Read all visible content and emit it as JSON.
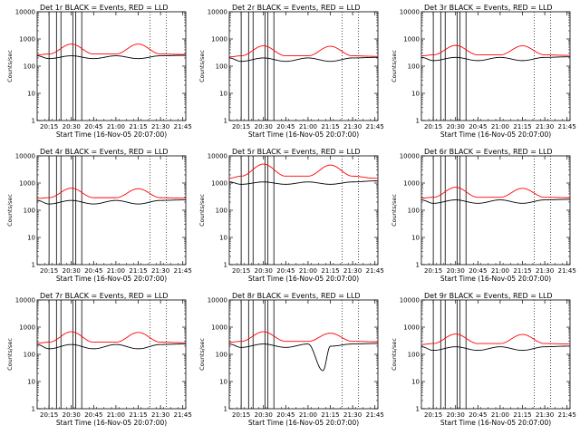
{
  "chart_data": [
    {
      "type": "line",
      "title": "Det 1r BLACK = Events, RED = LLD",
      "xlabel": "Start Time (16-Nov-05 20:07:00)",
      "ylabel": "Counts/sec",
      "yscale": "log",
      "ylim": [
        1,
        10000
      ],
      "xlim": [
        "20:07",
        "21:47"
      ],
      "yticks": [
        "1",
        "10",
        "100",
        "1000",
        "10000"
      ],
      "xticks": [
        "20:15",
        "20:30",
        "20:45",
        "21:00",
        "21:15",
        "21:30",
        "21:45"
      ],
      "vlines": [
        "20:15",
        "20:20",
        "20:23",
        "20:31",
        "20:33",
        "20:37"
      ],
      "dotted_vlines": [
        "21:23",
        "21:34"
      ],
      "series": [
        {
          "name": "RED",
          "color": "#ff0000",
          "x": [
            "20:07",
            "20:15",
            "20:30",
            "20:45",
            "21:00",
            "21:15",
            "21:30",
            "21:45"
          ],
          "y": [
            260,
            280,
            650,
            280,
            280,
            650,
            280,
            270
          ]
        },
        {
          "name": "BLACK",
          "color": "#000000",
          "x": [
            "20:07",
            "20:15",
            "20:30",
            "20:45",
            "21:00",
            "21:15",
            "21:30",
            "21:45"
          ],
          "y": [
            240,
            190,
            240,
            190,
            240,
            190,
            240,
            250
          ]
        }
      ]
    },
    {
      "type": "line",
      "title": "Det 2r BLACK = Events, RED = LLD",
      "xlabel": "Start Time (16-Nov-05 20:07:00)",
      "ylabel": "Counts/sec",
      "yscale": "log",
      "ylim": [
        1,
        10000
      ],
      "xlim": [
        "20:07",
        "21:47"
      ],
      "yticks": [
        "1",
        "10",
        "100",
        "1000",
        "10000"
      ],
      "xticks": [
        "20:15",
        "20:30",
        "20:45",
        "21:00",
        "21:15",
        "21:30",
        "21:45"
      ],
      "vlines": [
        "20:15",
        "20:20",
        "20:23",
        "20:31",
        "20:33",
        "20:37"
      ],
      "dotted_vlines": [
        "21:23",
        "21:34"
      ],
      "series": [
        {
          "name": "RED",
          "color": "#ff0000",
          "x": [
            "20:07",
            "20:15",
            "20:30",
            "20:45",
            "21:00",
            "21:15",
            "21:30",
            "21:45"
          ],
          "y": [
            220,
            240,
            560,
            240,
            240,
            540,
            240,
            230
          ]
        },
        {
          "name": "BLACK",
          "color": "#000000",
          "x": [
            "20:07",
            "20:15",
            "20:30",
            "20:45",
            "21:00",
            "21:15",
            "21:30",
            "21:45"
          ],
          "y": [
            200,
            150,
            200,
            150,
            200,
            150,
            200,
            210
          ]
        }
      ]
    },
    {
      "type": "line",
      "title": "Det 3r BLACK = Events, RED = LLD",
      "xlabel": "Start Time (16-Nov-05 20:07:00)",
      "ylabel": "Counts/sec",
      "yscale": "log",
      "ylim": [
        1,
        10000
      ],
      "xlim": [
        "20:07",
        "21:47"
      ],
      "yticks": [
        "1",
        "10",
        "100",
        "1000",
        "10000"
      ],
      "xticks": [
        "20:15",
        "20:30",
        "20:45",
        "21:00",
        "21:15",
        "21:30",
        "21:45"
      ],
      "vlines": [
        "20:15",
        "20:20",
        "20:23",
        "20:31",
        "20:33",
        "20:37"
      ],
      "dotted_vlines": [
        "21:23",
        "21:34"
      ],
      "series": [
        {
          "name": "RED",
          "color": "#ff0000",
          "x": [
            "20:07",
            "20:15",
            "20:30",
            "20:45",
            "21:00",
            "21:15",
            "21:30",
            "21:45"
          ],
          "y": [
            240,
            260,
            580,
            260,
            260,
            560,
            260,
            250
          ]
        },
        {
          "name": "BLACK",
          "color": "#000000",
          "x": [
            "20:07",
            "20:15",
            "20:30",
            "20:45",
            "21:00",
            "21:15",
            "21:30",
            "21:45"
          ],
          "y": [
            210,
            160,
            210,
            160,
            210,
            160,
            210,
            220
          ]
        }
      ]
    },
    {
      "type": "line",
      "title": "Det 4r BLACK = Events, RED = LLD",
      "xlabel": "Start Time (16-Nov-05 20:07:00)",
      "ylabel": "Counts/sec",
      "yscale": "log",
      "ylim": [
        1,
        10000
      ],
      "xlim": [
        "20:07",
        "21:47"
      ],
      "yticks": [
        "1",
        "10",
        "100",
        "1000",
        "10000"
      ],
      "xticks": [
        "20:15",
        "20:30",
        "20:45",
        "21:00",
        "21:15",
        "21:30",
        "21:45"
      ],
      "vlines": [
        "20:15",
        "20:20",
        "20:23",
        "20:31",
        "20:33",
        "20:37"
      ],
      "dotted_vlines": [
        "21:23",
        "21:34"
      ],
      "series": [
        {
          "name": "RED",
          "color": "#ff0000",
          "x": [
            "20:07",
            "20:15",
            "20:30",
            "20:45",
            "21:00",
            "21:15",
            "21:30",
            "21:45"
          ],
          "y": [
            270,
            290,
            650,
            290,
            290,
            620,
            290,
            280
          ]
        },
        {
          "name": "BLACK",
          "color": "#000000",
          "x": [
            "20:07",
            "20:15",
            "20:30",
            "20:45",
            "21:00",
            "21:15",
            "21:30",
            "21:45"
          ],
          "y": [
            230,
            170,
            230,
            170,
            230,
            170,
            230,
            240
          ]
        }
      ]
    },
    {
      "type": "line",
      "title": "Det 5r BLACK = Events, RED = LLD",
      "xlabel": "Start Time (16-Nov-05 20:07:00)",
      "ylabel": "Counts/sec",
      "yscale": "log",
      "ylim": [
        1,
        10000
      ],
      "xlim": [
        "20:07",
        "21:47"
      ],
      "yticks": [
        "1",
        "10",
        "100",
        "1000",
        "10000"
      ],
      "xticks": [
        "20:15",
        "20:30",
        "20:45",
        "21:00",
        "21:15",
        "21:30",
        "21:45"
      ],
      "vlines": [
        "20:15",
        "20:20",
        "20:23",
        "20:31",
        "20:33",
        "20:37"
      ],
      "dotted_vlines": [
        "21:23",
        "21:34"
      ],
      "series": [
        {
          "name": "RED",
          "color": "#ff0000",
          "x": [
            "20:07",
            "20:15",
            "20:30",
            "20:45",
            "21:00",
            "21:15",
            "21:30",
            "21:45"
          ],
          "y": [
            1500,
            1800,
            5000,
            1800,
            1800,
            4600,
            1800,
            1500
          ]
        },
        {
          "name": "BLACK",
          "color": "#000000",
          "x": [
            "20:07",
            "20:15",
            "20:30",
            "20:45",
            "21:00",
            "21:15",
            "21:30",
            "21:45"
          ],
          "y": [
            1100,
            900,
            1100,
            900,
            1100,
            900,
            1100,
            1200
          ]
        }
      ]
    },
    {
      "type": "line",
      "title": "Det 6r BLACK = Events, RED = LLD",
      "xlabel": "Start Time (16-Nov-05 20:07:00)",
      "ylabel": "Counts/sec",
      "yscale": "log",
      "ylim": [
        1,
        10000
      ],
      "xlim": [
        "20:07",
        "21:47"
      ],
      "yticks": [
        "1",
        "10",
        "100",
        "1000",
        "10000"
      ],
      "xticks": [
        "20:15",
        "20:30",
        "20:45",
        "21:00",
        "21:15",
        "21:30",
        "21:45"
      ],
      "vlines": [
        "20:15",
        "20:20",
        "20:23",
        "20:31",
        "20:33",
        "20:37"
      ],
      "dotted_vlines": [
        "21:23",
        "21:34"
      ],
      "series": [
        {
          "name": "RED",
          "color": "#ff0000",
          "x": [
            "20:07",
            "20:15",
            "20:30",
            "20:45",
            "21:00",
            "21:15",
            "21:30",
            "21:45"
          ],
          "y": [
            280,
            300,
            700,
            300,
            300,
            640,
            300,
            290
          ]
        },
        {
          "name": "BLACK",
          "color": "#000000",
          "x": [
            "20:07",
            "20:15",
            "20:30",
            "20:45",
            "21:00",
            "21:15",
            "21:30",
            "21:45"
          ],
          "y": [
            240,
            180,
            240,
            180,
            240,
            180,
            240,
            250
          ]
        }
      ]
    },
    {
      "type": "line",
      "title": "Det 7r BLACK = Events, RED = LLD",
      "xlabel": "Start Time (16-Nov-05 20:07:00)",
      "ylabel": "Counts/sec",
      "yscale": "log",
      "ylim": [
        1,
        10000
      ],
      "xlim": [
        "20:07",
        "21:47"
      ],
      "yticks": [
        "1",
        "10",
        "100",
        "1000",
        "10000"
      ],
      "xticks": [
        "20:15",
        "20:30",
        "20:45",
        "21:00",
        "21:15",
        "21:30",
        "21:45"
      ],
      "vlines": [
        "20:15",
        "20:20",
        "20:23",
        "20:31",
        "20:33",
        "20:37"
      ],
      "dotted_vlines": [
        "21:23",
        "21:34"
      ],
      "series": [
        {
          "name": "RED",
          "color": "#ff0000",
          "x": [
            "20:07",
            "20:15",
            "20:30",
            "20:45",
            "21:00",
            "21:15",
            "21:30",
            "21:45"
          ],
          "y": [
            260,
            280,
            680,
            280,
            280,
            640,
            280,
            270
          ]
        },
        {
          "name": "BLACK",
          "color": "#000000",
          "x": [
            "20:07",
            "20:15",
            "20:30",
            "20:45",
            "21:00",
            "21:15",
            "21:30",
            "21:45"
          ],
          "y": [
            230,
            160,
            230,
            160,
            230,
            160,
            230,
            240
          ]
        }
      ]
    },
    {
      "type": "line",
      "title": "Det 8r BLACK = Events, RED = LLD",
      "xlabel": "Start Time (16-Nov-05 20:07:00)",
      "ylabel": "Counts/sec",
      "yscale": "log",
      "ylim": [
        1,
        10000
      ],
      "xlim": [
        "20:07",
        "21:47"
      ],
      "yticks": [
        "1",
        "10",
        "100",
        "1000",
        "10000"
      ],
      "xticks": [
        "20:15",
        "20:30",
        "20:45",
        "21:00",
        "21:15",
        "21:30",
        "21:45"
      ],
      "vlines": [
        "20:15",
        "20:20",
        "20:23",
        "20:31",
        "20:33",
        "20:37"
      ],
      "dotted_vlines": [
        "21:23",
        "21:34"
      ],
      "series": [
        {
          "name": "RED",
          "color": "#ff0000",
          "x": [
            "20:07",
            "20:15",
            "20:30",
            "20:45",
            "21:00",
            "21:15",
            "21:30",
            "21:45"
          ],
          "y": [
            280,
            300,
            680,
            300,
            300,
            600,
            300,
            290
          ]
        },
        {
          "name": "BLACK",
          "color": "#000000",
          "x": [
            "20:07",
            "20:15",
            "20:30",
            "20:45",
            "21:00",
            "21:10",
            "21:15",
            "21:30",
            "21:45"
          ],
          "y": [
            240,
            180,
            240,
            180,
            240,
            25,
            200,
            240,
            250
          ]
        }
      ]
    },
    {
      "type": "line",
      "title": "Det 9r BLACK = Events, RED = LLD",
      "xlabel": "Start Time (16-Nov-05 20:07:00)",
      "ylabel": "Counts/sec",
      "yscale": "log",
      "ylim": [
        1,
        10000
      ],
      "xlim": [
        "20:07",
        "21:47"
      ],
      "yticks": [
        "1",
        "10",
        "100",
        "1000",
        "10000"
      ],
      "xticks": [
        "20:15",
        "20:30",
        "20:45",
        "21:00",
        "21:15",
        "21:30",
        "21:45"
      ],
      "vlines": [
        "20:15",
        "20:20",
        "20:23",
        "20:31",
        "20:33",
        "20:37"
      ],
      "dotted_vlines": [
        "21:23",
        "21:34"
      ],
      "series": [
        {
          "name": "RED",
          "color": "#ff0000",
          "x": [
            "20:07",
            "20:15",
            "20:30",
            "20:45",
            "21:00",
            "21:15",
            "21:30",
            "21:45"
          ],
          "y": [
            230,
            250,
            560,
            250,
            250,
            540,
            250,
            240
          ]
        },
        {
          "name": "BLACK",
          "color": "#000000",
          "x": [
            "20:07",
            "20:15",
            "20:30",
            "20:45",
            "21:00",
            "21:15",
            "21:30",
            "21:45"
          ],
          "y": [
            190,
            140,
            190,
            140,
            190,
            140,
            190,
            200
          ]
        }
      ]
    }
  ]
}
